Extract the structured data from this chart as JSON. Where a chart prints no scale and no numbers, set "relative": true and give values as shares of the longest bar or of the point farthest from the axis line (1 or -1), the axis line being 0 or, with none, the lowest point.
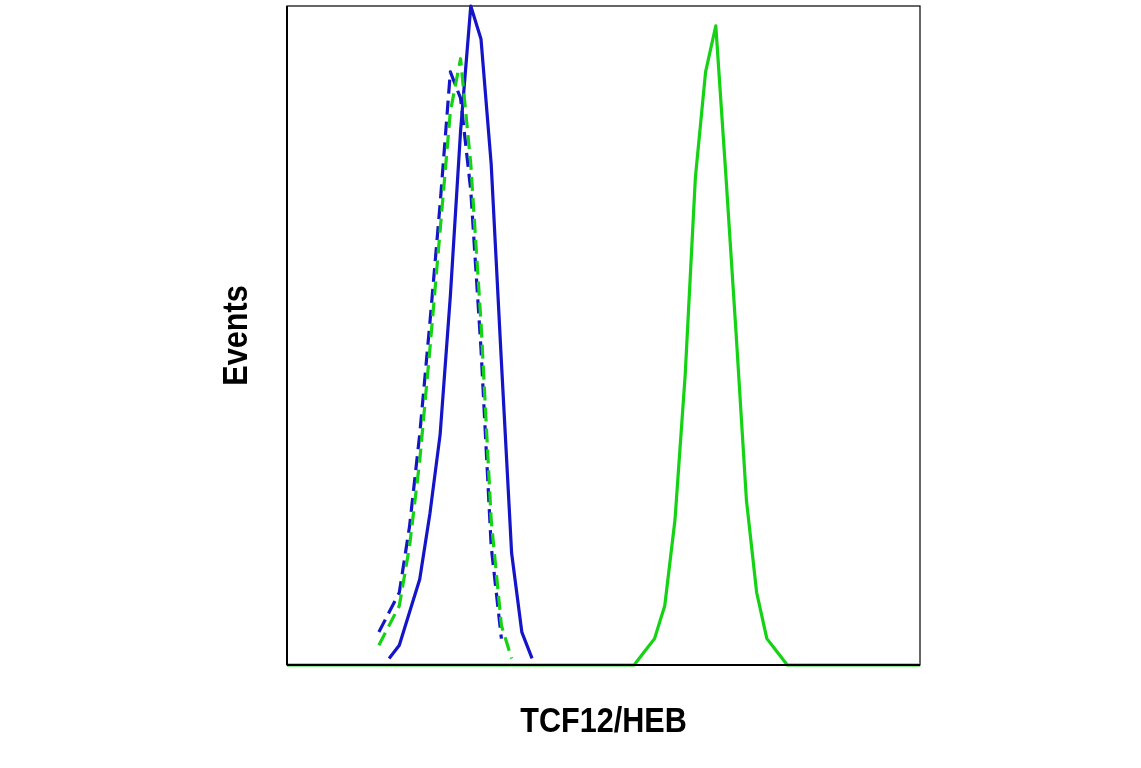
{
  "chart_data": {
    "type": "line",
    "relative": true,
    "xlabel": "TCF12/HEB",
    "ylabel": "Events",
    "categories": [
      null,
      null,
      null,
      null,
      null,
      null,
      null,
      null,
      null,
      null,
      null,
      null,
      null,
      null,
      null,
      null,
      null,
      null,
      null,
      null,
      null,
      null,
      null,
      null,
      null,
      null,
      null,
      null,
      null,
      null,
      null,
      null,
      null,
      null,
      null,
      null,
      null,
      null,
      null,
      null,
      null,
      null,
      null,
      null,
      null,
      null,
      null,
      null,
      null,
      null,
      null,
      null,
      null,
      null,
      null,
      null,
      null,
      null,
      null,
      null,
      null,
      null,
      null
    ],
    "series": [
      {
        "color": "#1414c8",
        "line_style": "solid",
        "values": [
          null,
          null,
          null,
          null,
          null,
          null,
          null,
          null,
          null,
          null,
          0.01,
          0.03,
          0.08,
          0.13,
          0.23,
          0.35,
          0.56,
          0.81,
          1,
          0.95,
          0.76,
          0.46,
          0.17,
          0.05,
          0.01,
          null,
          null,
          null,
          null,
          null,
          null,
          null,
          null,
          null,
          null,
          null,
          null,
          null,
          null,
          null,
          null,
          null,
          null,
          null,
          null,
          null,
          null,
          null,
          null,
          null,
          null,
          null,
          null,
          null,
          null,
          null,
          null,
          null,
          null,
          null,
          null,
          null,
          null
        ]
      },
      {
        "color": "#1414c8",
        "line_style": "dashed",
        "values": [
          null,
          null,
          null,
          null,
          null,
          null,
          null,
          null,
          null,
          0.05,
          0.08,
          0.11,
          0.21,
          0.35,
          0.52,
          0.7,
          0.9,
          0.86,
          0.72,
          0.48,
          0.18,
          0.04,
          null,
          null,
          null,
          null,
          null,
          null,
          null,
          null,
          null,
          null,
          null,
          null,
          null,
          null,
          null,
          null,
          null,
          null,
          null,
          null,
          null,
          null,
          null,
          null,
          null,
          null,
          null,
          null,
          null,
          null,
          null,
          null,
          null,
          null,
          null,
          null,
          null,
          null,
          null,
          null,
          null
        ]
      },
      {
        "color": "#14d214",
        "line_style": "dashed",
        "values": [
          null,
          null,
          null,
          null,
          null,
          null,
          null,
          null,
          null,
          0.03,
          0.06,
          0.09,
          0.18,
          0.31,
          0.48,
          0.66,
          0.84,
          0.92,
          0.76,
          0.52,
          0.22,
          0.06,
          0.01,
          null,
          null,
          null,
          null,
          null,
          null,
          null,
          null,
          null,
          null,
          null,
          null,
          null,
          null,
          null,
          null,
          null,
          null,
          null,
          null,
          null,
          null,
          null,
          null,
          null,
          null,
          null,
          null,
          null,
          null,
          null,
          null,
          null,
          null,
          null,
          null,
          null,
          null,
          null,
          null
        ]
      },
      {
        "color": "#14d214",
        "line_style": "solid",
        "values": [
          0,
          0,
          0,
          0,
          0,
          0,
          0,
          0,
          0,
          0,
          0,
          0,
          0,
          0,
          0,
          0,
          0,
          0,
          0,
          0,
          0,
          0,
          0,
          0,
          0,
          0,
          0,
          0,
          0,
          0,
          0,
          0,
          0,
          0,
          0,
          0.02,
          0.04,
          0.09,
          0.22,
          0.44,
          0.74,
          0.9,
          0.97,
          0.74,
          0.5,
          0.25,
          0.11,
          0.04,
          0.02,
          0,
          0,
          0,
          0,
          0,
          0,
          0,
          0,
          0,
          0,
          0,
          0,
          0,
          0
        ]
      }
    ]
  }
}
